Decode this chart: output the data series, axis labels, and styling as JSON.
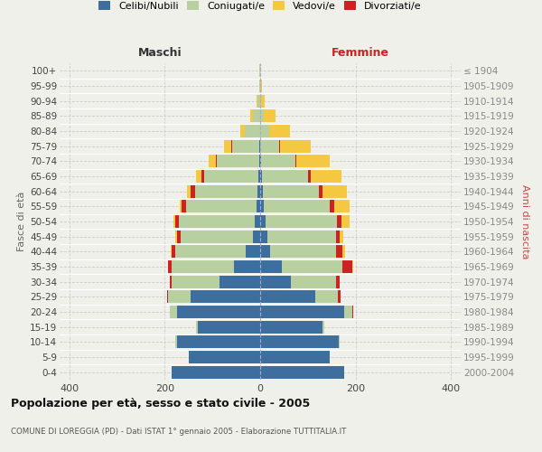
{
  "age_groups": [
    "0-4",
    "5-9",
    "10-14",
    "15-19",
    "20-24",
    "25-29",
    "30-34",
    "35-39",
    "40-44",
    "45-49",
    "50-54",
    "55-59",
    "60-64",
    "65-69",
    "70-74",
    "75-79",
    "80-84",
    "85-89",
    "90-94",
    "95-99",
    "100+"
  ],
  "birth_years": [
    "2000-2004",
    "1995-1999",
    "1990-1994",
    "1985-1989",
    "1980-1984",
    "1975-1979",
    "1970-1974",
    "1965-1969",
    "1960-1964",
    "1955-1959",
    "1950-1954",
    "1945-1949",
    "1940-1944",
    "1935-1939",
    "1930-1934",
    "1925-1929",
    "1920-1924",
    "1915-1919",
    "1910-1914",
    "1905-1909",
    "≤ 1904"
  ],
  "male_celibe": [
    185,
    150,
    175,
    130,
    175,
    145,
    85,
    55,
    30,
    15,
    12,
    8,
    5,
    3,
    2,
    1,
    0,
    0,
    0,
    0,
    0
  ],
  "male_coniugato": [
    0,
    0,
    2,
    4,
    14,
    48,
    100,
    130,
    148,
    152,
    158,
    148,
    132,
    115,
    88,
    58,
    32,
    15,
    5,
    2,
    1
  ],
  "male_vedovo": [
    0,
    0,
    0,
    0,
    0,
    0,
    0,
    0,
    1,
    2,
    3,
    5,
    8,
    12,
    16,
    15,
    10,
    5,
    2,
    0,
    0
  ],
  "male_divorziato": [
    0,
    0,
    0,
    0,
    1,
    2,
    5,
    8,
    8,
    8,
    8,
    8,
    8,
    5,
    2,
    1,
    0,
    0,
    0,
    0,
    0
  ],
  "female_nubile": [
    175,
    145,
    165,
    130,
    175,
    115,
    65,
    45,
    20,
    15,
    12,
    8,
    5,
    3,
    2,
    0,
    0,
    0,
    0,
    0,
    0
  ],
  "female_coniugata": [
    0,
    0,
    2,
    4,
    18,
    48,
    93,
    128,
    138,
    143,
    148,
    138,
    118,
    98,
    72,
    40,
    18,
    8,
    2,
    1,
    0
  ],
  "female_vedova": [
    0,
    0,
    0,
    0,
    0,
    0,
    1,
    2,
    4,
    8,
    18,
    32,
    50,
    65,
    70,
    65,
    45,
    25,
    8,
    2,
    0
  ],
  "female_divorziata": [
    0,
    0,
    0,
    0,
    2,
    5,
    8,
    20,
    15,
    8,
    10,
    10,
    8,
    5,
    2,
    1,
    0,
    0,
    0,
    0,
    0
  ],
  "colors": {
    "celibe_nubile": "#3d6e9e",
    "coniugato": "#b8cfa0",
    "vedovo": "#f5c842",
    "divorziato": "#cc2222"
  },
  "xlim": [
    -420,
    420
  ],
  "xticks": [
    -400,
    -200,
    0,
    200,
    400
  ],
  "xticklabels": [
    "400",
    "200",
    "0",
    "200",
    "400"
  ],
  "title": "Popolazione per età, sesso e stato civile - 2005",
  "subtitle": "COMUNE DI LOREGGIA (PD) - Dati ISTAT 1° gennaio 2005 - Elaborazione TUTTITALIA.IT",
  "ylabel_left": "Fasce di età",
  "ylabel_right": "Anni di nascita",
  "label_maschi": "Maschi",
  "label_femmine": "Femmine",
  "bg_color": "#f0f0eb",
  "bar_height": 0.85,
  "grid_color": "#cccccc",
  "legend_labels": [
    "Celibi/Nubili",
    "Coniugati/e",
    "Vedovi/e",
    "Divorziati/e"
  ]
}
